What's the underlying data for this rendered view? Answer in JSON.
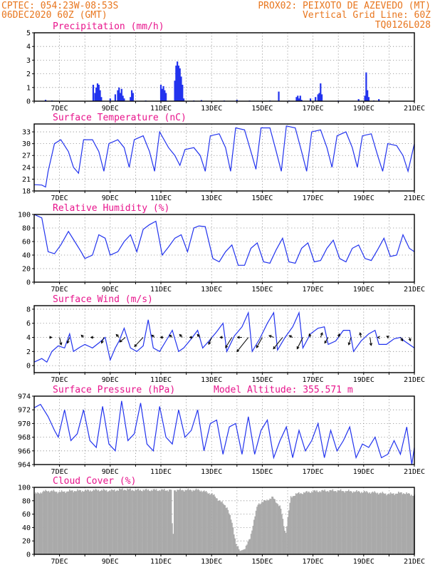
{
  "header": {
    "line1_left": "CPTEC:  054:23W-08:53S",
    "line1_right": "PROX02: PEIXOTO DE AZEVEDO (MT)",
    "date": "06DEC2020 60Z (GMT)",
    "grid_note": "Vertical Grid Line: 60Z",
    "code": "TQ0126L028"
  },
  "colors": {
    "header": "#e8761e",
    "title": "#e8148c",
    "series": "#2233ee",
    "cloud": "#a9a9a9",
    "arrow": "#000000"
  },
  "chart_data": [
    {
      "type": "bar",
      "title": "Precipitation (mm/h)",
      "x_tick_labels": [
        "7DEC",
        "9DEC",
        "11DEC",
        "13DEC",
        "15DEC",
        "17DEC",
        "19DEC",
        "21DEC"
      ],
      "xlim_day": [
        6.0,
        21.0
      ],
      "ylim": [
        0,
        5
      ],
      "y_ticks": [
        0,
        1,
        2,
        3,
        4,
        5
      ],
      "x_day": [
        6.45,
        6.7,
        8.33,
        8.4,
        8.45,
        8.5,
        8.55,
        8.6,
        8.65,
        9.0,
        9.2,
        9.3,
        9.35,
        9.4,
        9.45,
        9.5,
        9.55,
        9.8,
        9.85,
        9.9,
        10.4,
        11.0,
        11.05,
        11.1,
        11.15,
        11.2,
        11.55,
        11.6,
        11.65,
        11.7,
        11.75,
        11.8,
        11.85,
        11.9,
        12.3,
        12.6,
        13.5,
        14.0,
        14.5,
        15.3,
        15.65,
        16.05,
        16.35,
        16.4,
        16.45,
        16.5,
        16.55,
        16.9,
        17.1,
        17.2,
        17.25,
        17.3,
        17.35,
        18.0,
        18.8,
        19.05,
        19.1,
        19.15,
        19.2,
        19.4,
        19.6
      ],
      "values": [
        0.1,
        0.05,
        1.2,
        0.6,
        1.0,
        1.3,
        1.2,
        0.8,
        0.3,
        0.2,
        0.5,
        0.8,
        1.0,
        0.6,
        0.9,
        0.4,
        0.2,
        0.3,
        0.8,
        0.6,
        0.05,
        1.2,
        0.9,
        1.1,
        0.8,
        0.6,
        1.5,
        2.6,
        2.9,
        2.6,
        2.4,
        1.8,
        1.2,
        0.2,
        0.05,
        0.08,
        0.05,
        0.1,
        0.05,
        0.05,
        0.7,
        0.05,
        0.3,
        0.4,
        0.2,
        0.4,
        0.1,
        0.2,
        0.3,
        0.5,
        0.6,
        1.3,
        0.5,
        0.05,
        0.15,
        0.4,
        2.1,
        0.8,
        0.3,
        0.05,
        0.15
      ]
    },
    {
      "type": "line",
      "title": "Surface Temperature (nC)",
      "x_tick_labels": [
        "7DEC",
        "9DEC",
        "11DEC",
        "13DEC",
        "15DEC",
        "17DEC",
        "19DEC",
        "21DEC"
      ],
      "xlim_day": [
        6.0,
        21.0
      ],
      "ylim": [
        18,
        35
      ],
      "y_ticks": [
        18,
        21,
        24,
        27,
        30,
        33
      ],
      "x_day": [
        6.0,
        6.3,
        6.45,
        6.55,
        6.8,
        7.05,
        7.35,
        7.55,
        7.75,
        7.95,
        8.3,
        8.55,
        8.75,
        8.95,
        9.3,
        9.55,
        9.75,
        9.95,
        10.3,
        10.55,
        10.75,
        10.95,
        11.3,
        11.55,
        11.75,
        11.95,
        12.3,
        12.55,
        12.75,
        12.95,
        13.3,
        13.55,
        13.75,
        13.95,
        14.3,
        14.55,
        14.75,
        14.95,
        15.3,
        15.55,
        15.75,
        15.95,
        16.3,
        16.55,
        16.75,
        16.95,
        17.3,
        17.55,
        17.75,
        17.95,
        18.3,
        18.55,
        18.75,
        18.95,
        19.3,
        19.55,
        19.75,
        19.95,
        20.3,
        20.55,
        20.75,
        21.0
      ],
      "values": [
        19.6,
        19.5,
        19.0,
        23.0,
        30.0,
        31.0,
        28.0,
        24.0,
        22.5,
        31.0,
        31.0,
        28.0,
        23.0,
        30.0,
        31.0,
        29.0,
        24.0,
        31.0,
        32.0,
        28.0,
        23.0,
        33.0,
        29.0,
        27.0,
        24.5,
        28.5,
        29.0,
        27.0,
        23.0,
        32.0,
        32.5,
        29.0,
        23.0,
        34.0,
        33.5,
        28.0,
        23.5,
        34.0,
        34.0,
        28.0,
        23.0,
        34.5,
        34.0,
        28.0,
        23.0,
        33.0,
        33.5,
        29.0,
        24.0,
        32.0,
        33.0,
        29.0,
        24.0,
        32.0,
        32.5,
        27.0,
        23.0,
        30.0,
        29.5,
        27.0,
        23.0,
        30.0
      ]
    },
    {
      "type": "line",
      "title": "Relative Humidity (%)",
      "x_tick_labels": [
        "7DEC",
        "9DEC",
        "11DEC",
        "13DEC",
        "15DEC",
        "17DEC",
        "19DEC",
        "21DEC"
      ],
      "xlim_day": [
        6.0,
        21.0
      ],
      "ylim": [
        0,
        100
      ],
      "y_ticks": [
        0,
        20,
        40,
        60,
        80,
        100
      ],
      "x_day": [
        6.0,
        6.3,
        6.55,
        6.8,
        7.05,
        7.35,
        7.6,
        7.85,
        8.0,
        8.3,
        8.55,
        8.8,
        9.0,
        9.3,
        9.55,
        9.8,
        10.05,
        10.3,
        10.55,
        10.8,
        11.05,
        11.3,
        11.55,
        11.8,
        12.05,
        12.3,
        12.5,
        12.75,
        13.05,
        13.3,
        13.55,
        13.8,
        14.05,
        14.3,
        14.55,
        14.8,
        15.05,
        15.3,
        15.55,
        15.8,
        16.05,
        16.3,
        16.55,
        16.8,
        17.05,
        17.3,
        17.55,
        17.8,
        18.05,
        18.3,
        18.55,
        18.8,
        19.05,
        19.3,
        19.55,
        19.8,
        20.05,
        20.3,
        20.55,
        20.8,
        21.0
      ],
      "values": [
        100,
        95,
        45,
        42,
        55,
        75,
        60,
        45,
        35,
        40,
        70,
        65,
        40,
        45,
        60,
        70,
        45,
        78,
        85,
        90,
        40,
        52,
        65,
        70,
        45,
        80,
        83,
        82,
        35,
        30,
        45,
        55,
        25,
        25,
        50,
        58,
        30,
        28,
        48,
        65,
        30,
        28,
        50,
        58,
        30,
        32,
        50,
        62,
        35,
        30,
        50,
        55,
        35,
        32,
        48,
        65,
        38,
        40,
        70,
        50,
        45
      ]
    },
    {
      "type": "line",
      "title": "Surface Wind (m/s)",
      "x_tick_labels": [
        "7DEC",
        "9DEC",
        "11DEC",
        "13DEC",
        "15DEC",
        "17DEC",
        "19DEC",
        "21DEC"
      ],
      "xlim_day": [
        6.0,
        21.0
      ],
      "ylim": [
        -1,
        8.5
      ],
      "y_ticks": [
        0,
        2,
        4,
        6,
        8
      ],
      "x_day": [
        6.0,
        6.3,
        6.5,
        6.7,
        6.95,
        7.2,
        7.4,
        7.55,
        7.8,
        8.0,
        8.3,
        8.55,
        8.8,
        9.0,
        9.2,
        9.35,
        9.55,
        9.8,
        10.05,
        10.3,
        10.5,
        10.7,
        10.95,
        11.2,
        11.45,
        11.7,
        11.9,
        12.2,
        12.45,
        12.65,
        12.9,
        13.2,
        13.45,
        13.6,
        13.9,
        14.2,
        14.45,
        14.6,
        14.9,
        15.2,
        15.45,
        15.6,
        15.9,
        16.2,
        16.45,
        16.6,
        16.9,
        17.2,
        17.45,
        17.6,
        17.9,
        18.2,
        18.45,
        18.6,
        18.9,
        19.2,
        19.45,
        19.6,
        19.9,
        20.2,
        20.45,
        20.6,
        21.0
      ],
      "values": [
        0.5,
        1.0,
        0.5,
        2.0,
        2.8,
        2.5,
        4.5,
        2.0,
        2.6,
        3.0,
        2.5,
        3.2,
        4.0,
        0.8,
        2.5,
        3.5,
        5.3,
        2.5,
        2.0,
        2.8,
        6.5,
        2.5,
        2.0,
        3.5,
        5.0,
        2.0,
        2.5,
        3.8,
        5.0,
        2.5,
        3.5,
        4.8,
        6.0,
        2.0,
        4.2,
        5.5,
        7.5,
        2.0,
        3.8,
        6.0,
        7.5,
        2.2,
        4.0,
        5.5,
        7.5,
        2.5,
        4.5,
        5.3,
        5.5,
        3.0,
        3.5,
        5.0,
        5.0,
        2.0,
        3.5,
        4.5,
        5.0,
        3.0,
        3.0,
        3.8,
        4.0,
        3.5,
        2.5
      ],
      "arrows": [
        {
          "x_day": 6.6,
          "y": 4.0,
          "u": 0.4,
          "v": 0.0
        },
        {
          "x_day": 7.0,
          "y": 4.0,
          "u": 0.3,
          "v": -1.3
        },
        {
          "x_day": 7.4,
          "y": 4.0,
          "u": -0.4,
          "v": -1.0
        },
        {
          "x_day": 7.95,
          "y": 4.0,
          "u": -0.4,
          "v": 0.4
        },
        {
          "x_day": 8.35,
          "y": 4.0,
          "u": -0.5,
          "v": 0.0
        },
        {
          "x_day": 8.75,
          "y": 4.0,
          "u": -0.4,
          "v": -1.0
        },
        {
          "x_day": 9.35,
          "y": 4.0,
          "u": -0.5,
          "v": 0.5
        },
        {
          "x_day": 9.6,
          "y": 4.0,
          "u": -1.0,
          "v": -0.8
        },
        {
          "x_day": 10.3,
          "y": 4.0,
          "u": -1.5,
          "v": -1.6
        },
        {
          "x_day": 10.75,
          "y": 4.0,
          "u": -0.5,
          "v": 0.4
        },
        {
          "x_day": 11.1,
          "y": 4.0,
          "u": -0.5,
          "v": 0.0
        },
        {
          "x_day": 11.45,
          "y": 4.0,
          "u": -0.5,
          "v": 0.4
        },
        {
          "x_day": 11.85,
          "y": 4.0,
          "u": -0.5,
          "v": 0.5
        },
        {
          "x_day": 12.25,
          "y": 4.0,
          "u": -0.5,
          "v": 0.0
        },
        {
          "x_day": 12.55,
          "y": 4.0,
          "u": -0.5,
          "v": 0.5
        },
        {
          "x_day": 13.0,
          "y": 4.0,
          "u": -0.5,
          "v": -1.2
        },
        {
          "x_day": 13.45,
          "y": 4.0,
          "u": -0.5,
          "v": 0.0
        },
        {
          "x_day": 13.8,
          "y": 4.0,
          "u": -1.1,
          "v": -1.8
        },
        {
          "x_day": 14.2,
          "y": 4.0,
          "u": -0.8,
          "v": 0.0
        },
        {
          "x_day": 14.45,
          "y": 4.0,
          "u": -2.0,
          "v": -2.5
        },
        {
          "x_day": 15.0,
          "y": 4.0,
          "u": -1.0,
          "v": -1.8
        },
        {
          "x_day": 15.45,
          "y": 4.0,
          "u": -0.8,
          "v": 0.3
        },
        {
          "x_day": 15.8,
          "y": 4.0,
          "u": -1.6,
          "v": -2.0
        },
        {
          "x_day": 16.2,
          "y": 4.0,
          "u": -0.6,
          "v": 0.3
        },
        {
          "x_day": 16.6,
          "y": 4.0,
          "u": -1.0,
          "v": -2.0
        },
        {
          "x_day": 16.9,
          "y": 4.0,
          "u": -0.2,
          "v": 0.6
        },
        {
          "x_day": 17.3,
          "y": 4.0,
          "u": 0.3,
          "v": 0.8
        },
        {
          "x_day": 17.6,
          "y": 4.0,
          "u": -0.6,
          "v": -1.0
        },
        {
          "x_day": 18.0,
          "y": 4.0,
          "u": 0.2,
          "v": 0.6
        },
        {
          "x_day": 18.5,
          "y": 4.0,
          "u": -0.4,
          "v": -1.3
        },
        {
          "x_day": 18.9,
          "y": 4.0,
          "u": -0.2,
          "v": 0.8
        },
        {
          "x_day": 19.25,
          "y": 4.0,
          "u": 0.2,
          "v": -1.4
        },
        {
          "x_day": 19.6,
          "y": 4.0,
          "u": -0.2,
          "v": 0.0
        },
        {
          "x_day": 20.0,
          "y": 4.0,
          "u": -0.4,
          "v": 0.2
        },
        {
          "x_day": 20.45,
          "y": 4.0,
          "u": 0.4,
          "v": -0.6
        },
        {
          "x_day": 20.8,
          "y": 4.0,
          "u": 0.2,
          "v": -0.6
        }
      ]
    },
    {
      "type": "line",
      "title": "Surface Pressure (hPa)",
      "annotation": "Model Altitude: 355.571 m",
      "x_tick_labels": [
        "7DEC",
        "9DEC",
        "11DEC",
        "13DEC",
        "15DEC",
        "17DEC",
        "19DEC",
        "21DEC"
      ],
      "xlim_day": [
        6.0,
        21.0
      ],
      "ylim": [
        964,
        974
      ],
      "y_ticks": [
        964,
        966,
        968,
        970,
        972,
        974
      ],
      "x_day": [
        6.0,
        6.25,
        6.55,
        6.8,
        6.95,
        7.2,
        7.45,
        7.7,
        7.95,
        8.2,
        8.45,
        8.7,
        8.95,
        9.2,
        9.45,
        9.7,
        9.95,
        10.2,
        10.45,
        10.7,
        10.95,
        11.2,
        11.45,
        11.7,
        11.95,
        12.2,
        12.45,
        12.7,
        12.95,
        13.2,
        13.45,
        13.7,
        13.95,
        14.2,
        14.45,
        14.7,
        14.95,
        15.2,
        15.45,
        15.7,
        15.95,
        16.2,
        16.45,
        16.7,
        16.95,
        17.2,
        17.45,
        17.7,
        17.95,
        18.2,
        18.45,
        18.7,
        18.95,
        19.2,
        19.45,
        19.7,
        19.95,
        20.2,
        20.45,
        20.7,
        20.9,
        21.0
      ],
      "values": [
        972.3,
        972.8,
        971.0,
        969.0,
        968.0,
        972.0,
        967.5,
        968.5,
        972.0,
        967.5,
        966.5,
        972.5,
        967.0,
        966.0,
        973.3,
        967.5,
        968.5,
        973.0,
        967.0,
        966.0,
        972.5,
        968.0,
        967.0,
        972.0,
        968.0,
        969.0,
        972.0,
        966.0,
        970.0,
        970.5,
        965.5,
        969.5,
        970.0,
        965.5,
        971.0,
        965.5,
        969.0,
        970.5,
        965.0,
        967.5,
        969.5,
        965.0,
        969.0,
        966.0,
        967.5,
        970.0,
        965.0,
        969.0,
        966.0,
        967.5,
        969.5,
        965.0,
        967.0,
        966.5,
        968.0,
        965.0,
        965.5,
        967.5,
        965.5,
        969.5,
        964.0,
        966.5
      ]
    },
    {
      "type": "area",
      "title": "Cloud Cover (%)",
      "x_tick_labels": [
        "7DEC",
        "9DEC",
        "11DEC",
        "13DEC",
        "15DEC",
        "17DEC",
        "19DEC",
        "21DEC"
      ],
      "xlim_day": [
        6.0,
        21.0
      ],
      "ylim": [
        0,
        100
      ],
      "y_ticks": [
        0,
        20,
        40,
        60,
        80,
        100
      ],
      "x_day": [
        6.0,
        6.5,
        7.0,
        7.5,
        8.0,
        8.5,
        9.0,
        9.5,
        10.0,
        10.5,
        11.0,
        11.4,
        11.45,
        11.5,
        12.0,
        12.5,
        13.0,
        13.3,
        13.6,
        13.8,
        13.95,
        14.1,
        14.3,
        14.5,
        14.8,
        15.1,
        15.4,
        15.7,
        15.9,
        16.1,
        16.3,
        16.6,
        17.0,
        17.5,
        18.0,
        18.5,
        19.0,
        19.5,
        20.0,
        20.5,
        21.0
      ],
      "values": [
        90,
        95,
        93,
        95,
        95,
        96,
        95,
        97,
        96,
        96,
        96,
        96,
        0,
        96,
        96,
        96,
        90,
        80,
        70,
        45,
        15,
        5,
        8,
        25,
        75,
        80,
        85,
        70,
        30,
        85,
        90,
        92,
        94,
        95,
        95,
        94,
        93,
        92,
        90,
        92,
        88
      ]
    }
  ]
}
